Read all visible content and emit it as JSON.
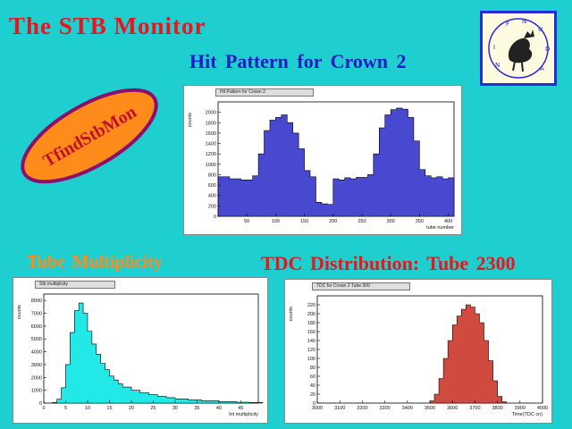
{
  "page": {
    "title": "The  STB  Monitor",
    "badge_text": "TfindStbMon",
    "logo_letters": [
      "I",
      "N",
      "F",
      "N",
      "U",
      "D",
      "A"
    ],
    "colors": {
      "background": "#1fcfcf",
      "title": "#e8161c",
      "badge_fill": "#ff8c1a",
      "badge_border": "#8b0f6c",
      "badge_text": "#c0102a",
      "logo_border": "#2b2bd6"
    }
  },
  "chart_data": [
    {
      "id": "hit-pattern",
      "heading": "Hit  Pattern  for  Crown  2",
      "tab_label": "Hit Pattern for Crown  2",
      "type": "bar",
      "color": "#4848d0",
      "xlabel": "tube number",
      "ylabel": "counts",
      "xlim": [
        0,
        410
      ],
      "ylim": [
        0,
        2200
      ],
      "xticks": [
        50,
        100,
        150,
        200,
        250,
        300,
        350,
        400
      ],
      "yticks": [
        0,
        200,
        400,
        600,
        800,
        1000,
        1200,
        1400,
        1600,
        1800,
        2000
      ],
      "x": [
        0,
        20,
        40,
        60,
        70,
        80,
        90,
        100,
        110,
        120,
        130,
        140,
        150,
        160,
        170,
        180,
        190,
        200,
        210,
        220,
        230,
        240,
        260,
        270,
        280,
        290,
        300,
        310,
        320,
        330,
        340,
        350,
        360,
        370,
        380,
        390,
        400,
        410
      ],
      "values": [
        760,
        720,
        700,
        780,
        1200,
        1650,
        1850,
        1900,
        1950,
        1800,
        1600,
        1300,
        880,
        760,
        270,
        240,
        230,
        720,
        700,
        740,
        720,
        750,
        800,
        1200,
        1700,
        1950,
        2050,
        2080,
        2060,
        1900,
        1450,
        900,
        780,
        740,
        760,
        720,
        740,
        700
      ]
    },
    {
      "id": "tube-multiplicity",
      "heading": "Tube  Multiplicity",
      "tab_label": "Stb multiplicity",
      "type": "bar",
      "color": "#22e8e8",
      "xlabel": "hit multiplicity",
      "ylabel": "counts",
      "xlim": [
        0,
        49
      ],
      "ylim": [
        0,
        8500
      ],
      "xticks": [
        0,
        5,
        10,
        15,
        20,
        25,
        30,
        35,
        40,
        45
      ],
      "yticks": [
        0,
        1000,
        2000,
        3000,
        4000,
        5000,
        6000,
        7000,
        8000
      ],
      "x": [
        2,
        3,
        4,
        5,
        6,
        7,
        8,
        9,
        10,
        11,
        12,
        13,
        14,
        15,
        16,
        17,
        18,
        20,
        22,
        24,
        26,
        28,
        30,
        33,
        36,
        40,
        44,
        47
      ],
      "values": [
        50,
        300,
        1200,
        3000,
        5500,
        7200,
        7800,
        7000,
        5600,
        4600,
        3800,
        3100,
        2600,
        2100,
        1800,
        1500,
        1250,
        1000,
        800,
        650,
        520,
        420,
        330,
        250,
        180,
        120,
        70,
        40
      ]
    },
    {
      "id": "tdc-distribution",
      "heading": "TDC  Distribution:  Tube  2300",
      "tab_label": "TDC  for Crown 2 Tube  300",
      "type": "bar",
      "color": "#d04a40",
      "xlabel": "Time(TDC cn)",
      "ylabel": "counts",
      "xlim": [
        3000,
        4000
      ],
      "ylim": [
        0,
        240
      ],
      "xticks": [
        3000,
        3100,
        3200,
        3300,
        3400,
        3500,
        3600,
        3700,
        3800,
        3900,
        4000
      ],
      "yticks": [
        0,
        20,
        40,
        60,
        80,
        100,
        120,
        140,
        160,
        180,
        200,
        220
      ],
      "x": [
        3500,
        3520,
        3540,
        3560,
        3580,
        3600,
        3620,
        3640,
        3660,
        3680,
        3700,
        3720,
        3740,
        3760,
        3780,
        3800,
        3820
      ],
      "values": [
        5,
        20,
        55,
        100,
        140,
        175,
        195,
        210,
        220,
        215,
        200,
        180,
        140,
        95,
        50,
        15,
        3
      ]
    }
  ]
}
